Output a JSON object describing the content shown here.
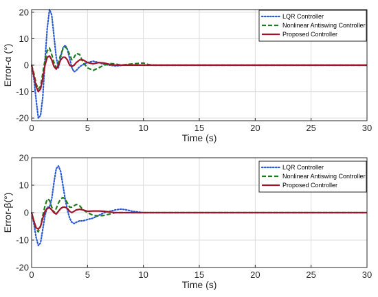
{
  "chart_data": [
    {
      "type": "line",
      "xlabel": "Time (s)",
      "ylabel": "Error-α (°)",
      "xlim": [
        0,
        30
      ],
      "ylim": [
        -21,
        21
      ],
      "xticks": [
        "0",
        "5",
        "10",
        "15",
        "20",
        "25",
        "30"
      ],
      "yticks": [
        "20",
        "10",
        "0",
        "-10",
        "-20"
      ],
      "ytick_values": [
        20,
        10,
        0,
        -10,
        -20
      ],
      "grid": true,
      "legend_position": "top-right",
      "series": [
        {
          "name": "LQR Controller",
          "color": "#2a5bd7",
          "style": "dotted",
          "x": [
            0,
            0.2,
            0.4,
            0.6,
            0.8,
            1.0,
            1.2,
            1.4,
            1.6,
            1.8,
            2.0,
            2.2,
            2.4,
            2.6,
            2.8,
            3.0,
            3.2,
            3.4,
            3.6,
            3.8,
            4.0,
            4.2,
            4.5,
            5.0,
            5.5,
            6.0,
            6.5,
            7.0,
            7.5,
            8.0,
            8.5,
            9.0,
            10,
            11,
            12,
            30
          ],
          "y": [
            0,
            -5,
            -13,
            -20,
            -19,
            -12,
            2,
            14,
            21,
            19,
            11,
            3,
            -1,
            3,
            6.5,
            7.5,
            6,
            2.5,
            -1,
            -2.5,
            -2,
            -1,
            0,
            1,
            1.5,
            1,
            0.3,
            0,
            -0.3,
            -0.1,
            0.2,
            0.1,
            0,
            0,
            0,
            0
          ]
        },
        {
          "name": "Nonlinear Antiswing Controller",
          "color": "#1f7a1f",
          "style": "dashed",
          "x": [
            0,
            0.2,
            0.4,
            0.6,
            0.8,
            1.0,
            1.2,
            1.4,
            1.6,
            1.8,
            2.0,
            2.2,
            2.4,
            2.6,
            2.8,
            3.0,
            3.2,
            3.4,
            3.6,
            3.8,
            4.0,
            4.3,
            4.6,
            5.0,
            5.5,
            6.0,
            6.5,
            7.0,
            7.5,
            8.0,
            9.0,
            10,
            10.5,
            11,
            12,
            30
          ],
          "y": [
            0,
            -3,
            -7,
            -9,
            -8,
            -3,
            2,
            5.5,
            6.5,
            4,
            1,
            -1,
            1,
            4,
            6,
            7,
            6,
            4,
            2,
            3,
            4.5,
            4,
            1,
            -1,
            -2,
            -1,
            0,
            0.6,
            0.5,
            0,
            0.5,
            0.8,
            0.2,
            0,
            0,
            0
          ]
        },
        {
          "name": "Proposed Controller",
          "color": "#a0142a",
          "style": "solid",
          "x": [
            0,
            0.2,
            0.4,
            0.6,
            0.8,
            1.0,
            1.2,
            1.4,
            1.6,
            1.8,
            2.0,
            2.2,
            2.4,
            2.6,
            2.8,
            3.0,
            3.2,
            3.4,
            3.6,
            3.8,
            4.0,
            4.3,
            4.6,
            5.0,
            5.5,
            6.0,
            6.5,
            7.0,
            7.5,
            8.0,
            9.0,
            10,
            11,
            12,
            30
          ],
          "y": [
            0,
            -4,
            -8,
            -10,
            -9,
            -5,
            0,
            3,
            3.5,
            2,
            -0.5,
            -1.5,
            0,
            2,
            3,
            3,
            2,
            0,
            -0.5,
            0,
            1,
            2,
            2,
            1,
            0.5,
            1,
            0.8,
            0.3,
            0,
            0,
            0,
            0,
            0,
            0,
            0
          ]
        }
      ]
    },
    {
      "type": "line",
      "xlabel": "Time (s)",
      "ylabel": "Error-β(°)",
      "xlim": [
        0,
        30
      ],
      "ylim": [
        -20,
        20
      ],
      "xticks": [
        "0",
        "5",
        "10",
        "15",
        "20",
        "25",
        "30"
      ],
      "yticks": [
        "20",
        "10",
        "0",
        "-10",
        "-20"
      ],
      "ytick_values": [
        20,
        10,
        0,
        -10,
        -20
      ],
      "grid": true,
      "legend_position": "top-right",
      "series": [
        {
          "name": "LQR Controller",
          "color": "#2a5bd7",
          "style": "dotted",
          "x": [
            0,
            0.2,
            0.4,
            0.6,
            0.8,
            1.0,
            1.2,
            1.4,
            1.6,
            1.8,
            2.0,
            2.2,
            2.4,
            2.6,
            2.8,
            3.0,
            3.2,
            3.4,
            3.6,
            3.8,
            4.0,
            4.3,
            4.6,
            5.0,
            5.5,
            6.0,
            6.5,
            7.0,
            7.5,
            8.0,
            8.5,
            9.0,
            10,
            11,
            12,
            15,
            30
          ],
          "y": [
            0,
            -4,
            -9,
            -12,
            -11,
            -6,
            -1,
            2,
            2,
            5,
            11,
            16,
            17,
            15,
            10,
            5,
            1,
            -2,
            -3.5,
            -4,
            -3.5,
            -3,
            -3,
            -2.5,
            -2,
            -1,
            0,
            0.5,
            1,
            1.3,
            1,
            0.5,
            0,
            0,
            0,
            0,
            0
          ]
        },
        {
          "name": "Nonlinear Antiswing Controller",
          "color": "#1f7a1f",
          "style": "dashed",
          "x": [
            0,
            0.2,
            0.4,
            0.6,
            0.8,
            1.0,
            1.2,
            1.4,
            1.6,
            1.8,
            2.0,
            2.2,
            2.4,
            2.6,
            2.8,
            3.0,
            3.2,
            3.4,
            3.6,
            3.8,
            4.0,
            4.3,
            4.6,
            5.0,
            5.5,
            6.0,
            6.5,
            7.0,
            7.5,
            8.0,
            9.0,
            10,
            11,
            12,
            30
          ],
          "y": [
            0,
            -3,
            -6,
            -7,
            -5,
            -1,
            2.5,
            5,
            4.5,
            2,
            0,
            1.5,
            3.5,
            5,
            5.5,
            5,
            3.5,
            2,
            2,
            2.5,
            3,
            2.5,
            1,
            0,
            -1,
            -1.2,
            -1,
            -0.5,
            0,
            0,
            0,
            0,
            0,
            0,
            0
          ]
        },
        {
          "name": "Proposed Controller",
          "color": "#a0142a",
          "style": "solid",
          "x": [
            0,
            0.2,
            0.4,
            0.6,
            0.8,
            1.0,
            1.2,
            1.4,
            1.6,
            1.8,
            2.0,
            2.2,
            2.4,
            2.6,
            2.8,
            3.0,
            3.2,
            3.4,
            3.6,
            3.8,
            4.0,
            4.3,
            4.6,
            5.0,
            5.5,
            6.0,
            6.5,
            7.0,
            7.5,
            8.0,
            9.0,
            10,
            11,
            12,
            30
          ],
          "y": [
            0,
            -3,
            -5.5,
            -6,
            -5,
            -2,
            0.5,
            1.5,
            1.8,
            1,
            0,
            -0.5,
            0.5,
            1.5,
            2,
            2,
            1.5,
            0.5,
            0,
            0.5,
            1,
            1.2,
            1,
            0.5,
            0.6,
            0.6,
            0.5,
            0.2,
            0,
            0,
            0,
            0,
            0,
            0,
            0
          ]
        }
      ]
    }
  ]
}
